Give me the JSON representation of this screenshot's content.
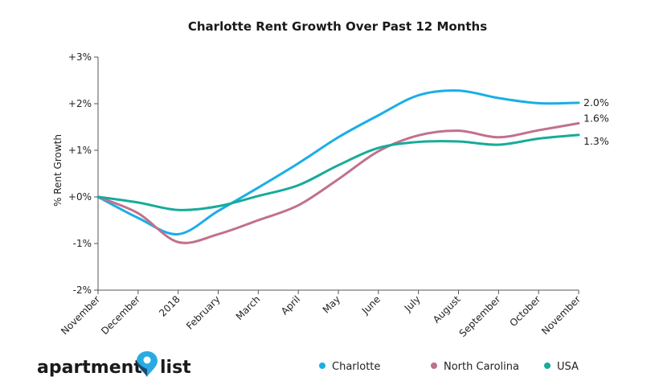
{
  "brand": {
    "word_left": "apartment",
    "word_right": "list",
    "pin_color": "#29abe2",
    "pin_dark": "#1b3a5c"
  },
  "chart_data": {
    "type": "line",
    "title": "Charlotte Rent Growth Over Past 12 Months",
    "xlabel": "",
    "ylabel": "% Rent Growth",
    "categories": [
      "November",
      "December",
      "2018",
      "February",
      "March",
      "April",
      "May",
      "June",
      "July",
      "August",
      "September",
      "October",
      "November"
    ],
    "ylim": [
      -2,
      3
    ],
    "yticks": [
      "-2%",
      "-1%",
      "+0%",
      "+1%",
      "+2%",
      "+3%"
    ],
    "grid": false,
    "legend_position": "bottom",
    "series": [
      {
        "name": "Charlotte",
        "color": "#1aaee6",
        "values": [
          0.0,
          -0.45,
          -0.8,
          -0.3,
          0.2,
          0.72,
          1.28,
          1.75,
          2.18,
          2.28,
          2.12,
          2.01,
          2.02
        ],
        "end_label": "2.0%"
      },
      {
        "name": "North Carolina",
        "color": "#c1718c",
        "values": [
          0.0,
          -0.35,
          -0.97,
          -0.8,
          -0.5,
          -0.18,
          0.38,
          0.98,
          1.32,
          1.42,
          1.28,
          1.43,
          1.58
        ],
        "end_label": "1.6%"
      },
      {
        "name": "USA",
        "color": "#17ab9a",
        "values": [
          0.0,
          -0.12,
          -0.28,
          -0.2,
          0.02,
          0.25,
          0.68,
          1.05,
          1.18,
          1.19,
          1.12,
          1.25,
          1.33
        ],
        "end_label": "1.3%"
      }
    ]
  }
}
